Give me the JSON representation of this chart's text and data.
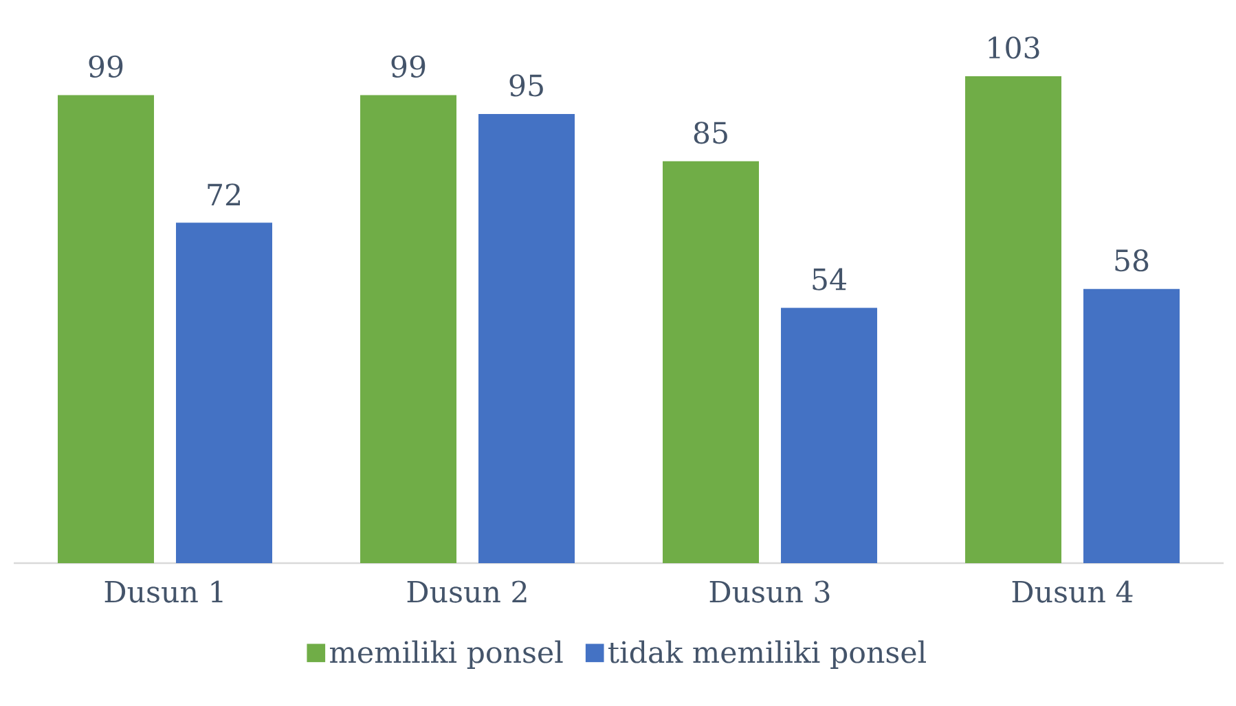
{
  "chart_data": {
    "type": "bar",
    "categories": [
      "Dusun 1",
      "Dusun 2",
      "Dusun 3",
      "Dusun 4"
    ],
    "series": [
      {
        "name": "memiliki ponsel",
        "color": "#70ad47",
        "values": [
          99,
          99,
          85,
          103
        ]
      },
      {
        "name": "tidak memiliki ponsel",
        "color": "#4472c4",
        "values": [
          72,
          95,
          54,
          58
        ]
      }
    ],
    "data_labels": true,
    "legend": "bottom"
  }
}
